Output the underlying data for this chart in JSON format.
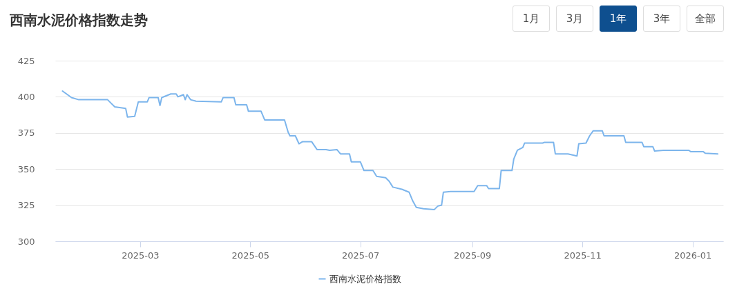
{
  "chart_data": {
    "type": "line",
    "title": "西南水泥价格指数走势",
    "annotations": [
      "1月",
      "3月",
      "1年",
      "3年",
      "全部"
    ],
    "xlim": [
      "2025-01-13",
      "2026-01-18"
    ],
    "xticks": [
      "2025-03",
      "2025-05",
      "2025-07",
      "2025-09",
      "2025-11",
      "2026-01"
    ],
    "ylim": [
      300,
      425
    ],
    "yticks": [
      300,
      325,
      350,
      375,
      400,
      425
    ],
    "grid": "y",
    "legend": "bottom",
    "marker": "none",
    "line_style": "solid",
    "series": [
      {
        "name": "西南水泥价格指数",
        "color": "#7cb5ec",
        "x": [
          "2025-01-17",
          "2025-01-22",
          "2025-01-26",
          "2025-02-11",
          "2025-02-13",
          "2025-02-15",
          "2025-02-21",
          "2025-02-22",
          "2025-02-26",
          "2025-02-28",
          "2025-03-05",
          "2025-03-06",
          "2025-03-11",
          "2025-03-12",
          "2025-03-13",
          "2025-03-18",
          "2025-03-21",
          "2025-03-22",
          "2025-03-25",
          "2025-03-26",
          "2025-03-27",
          "2025-03-29",
          "2025-04-01",
          "2025-04-15",
          "2025-04-16",
          "2025-04-22",
          "2025-04-23",
          "2025-04-29",
          "2025-04-30",
          "2025-05-07",
          "2025-05-09",
          "2025-05-20",
          "2025-05-22",
          "2025-05-23",
          "2025-05-26",
          "2025-05-28",
          "2025-05-30",
          "2025-06-04",
          "2025-06-07",
          "2025-06-12",
          "2025-06-14",
          "2025-06-18",
          "2025-06-20",
          "2025-06-25",
          "2025-06-26",
          "2025-07-01",
          "2025-07-03",
          "2025-07-08",
          "2025-07-10",
          "2025-07-15",
          "2025-07-17",
          "2025-07-19",
          "2025-07-24",
          "2025-07-28",
          "2025-07-30",
          "2025-08-01",
          "2025-08-05",
          "2025-08-11",
          "2025-08-13",
          "2025-08-15",
          "2025-08-16",
          "2025-08-20",
          "2025-09-02",
          "2025-09-04",
          "2025-09-09",
          "2025-09-10",
          "2025-09-16",
          "2025-09-17",
          "2025-09-23",
          "2025-09-24",
          "2025-09-26",
          "2025-09-29",
          "2025-09-30",
          "2025-10-10",
          "2025-10-11",
          "2025-10-16",
          "2025-10-17",
          "2025-10-24",
          "2025-10-29",
          "2025-10-30",
          "2025-11-03",
          "2025-11-05",
          "2025-11-07",
          "2025-11-12",
          "2025-11-13",
          "2025-11-18",
          "2025-11-24",
          "2025-11-25",
          "2025-12-04",
          "2025-12-05",
          "2025-12-10",
          "2025-12-11",
          "2025-12-16",
          "2025-12-30",
          "2025-12-31",
          "2026-01-07",
          "2026-01-08",
          "2026-01-15"
        ],
        "values": [
          404,
          399.5,
          398,
          398,
          395.5,
          393,
          392,
          386,
          386.5,
          396.5,
          396.5,
          399.5,
          399.5,
          394,
          399.5,
          402,
          402,
          400,
          401.5,
          398,
          401.5,
          398,
          397,
          396.5,
          399.5,
          399.5,
          394.5,
          394.5,
          390,
          390,
          384,
          384,
          375.5,
          373,
          373,
          367.5,
          369,
          369,
          363.5,
          363.5,
          363,
          363.5,
          360.5,
          360.5,
          355,
          355,
          349,
          349,
          345,
          344,
          341.5,
          337.5,
          336,
          334,
          328,
          323.5,
          322.5,
          322,
          324.5,
          325,
          334,
          334.5,
          334.5,
          338.5,
          338.5,
          336.5,
          336.5,
          349,
          349,
          357,
          363,
          365,
          368,
          368,
          368.5,
          368.5,
          360.5,
          360.5,
          359,
          367.5,
          368,
          373,
          376.5,
          376.5,
          373,
          373,
          373,
          368.5,
          368.5,
          365.5,
          365.5,
          362.5,
          363,
          363,
          362,
          362,
          361,
          360.5
        ]
      }
    ]
  }
}
